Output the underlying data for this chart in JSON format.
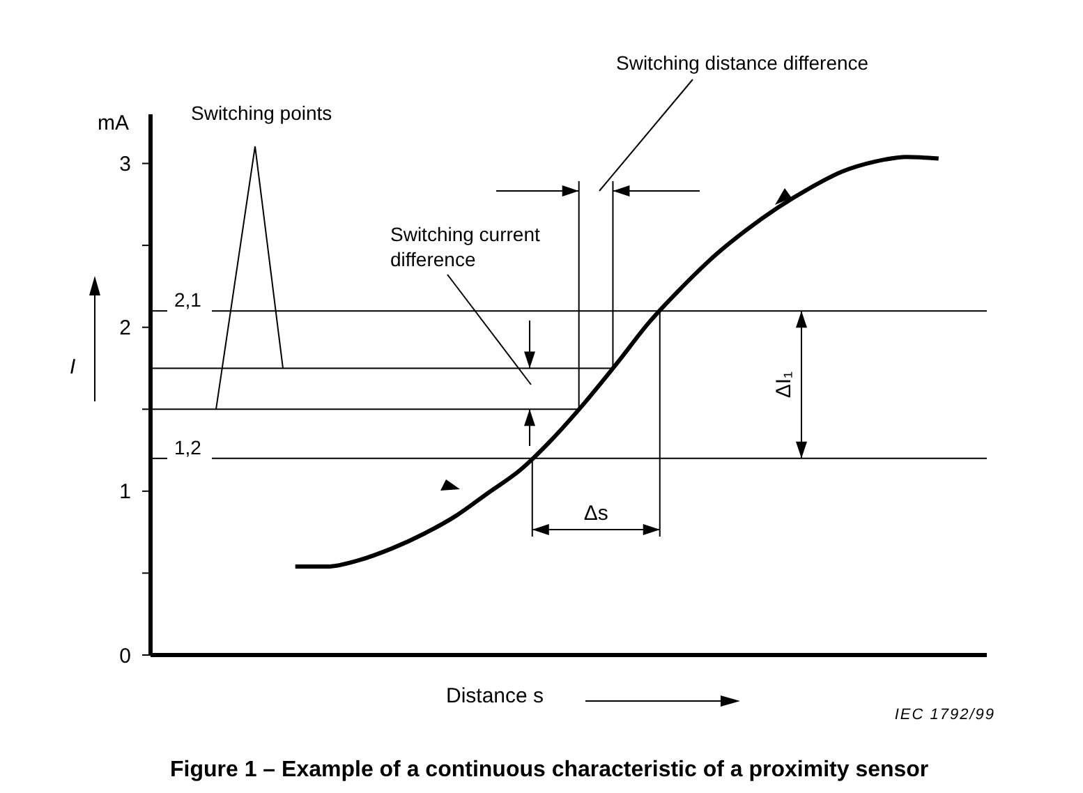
{
  "chart_data": {
    "type": "line",
    "title": "Figure 1 – Example of a continuous characteristic of a proximity sensor",
    "xlabel": "Distance s",
    "ylabel": "I",
    "categories": [
      null,
      null,
      null,
      null,
      null,
      null,
      null,
      null,
      null,
      null,
      null,
      null,
      null,
      null,
      null,
      null,
      null,
      null,
      null,
      null,
      null,
      null,
      null,
      null,
      null,
      null
    ],
    "series": [
      {
        "color": "#000000",
        "values": [
          null,
          null,
          null,
          null,
          0.54,
          0.54,
          0.58,
          0.65,
          0.74,
          0.85,
          0.99,
          1.13,
          1.32,
          1.54,
          1.78,
          2.03,
          2.24,
          2.43,
          2.59,
          2.73,
          2.85,
          2.95,
          3.01,
          3.04,
          3.03,
          null
        ]
      }
    ],
    "ylim": [
      0,
      3.3
    ],
    "yticks": [
      0,
      {
        "value": 0.5,
        "label": null
      },
      1,
      {
        "value": 1.5,
        "label": null
      },
      2,
      {
        "value": 2.5,
        "label": null
      },
      3
    ],
    "ref_lines": [
      {
        "axis": "y",
        "value": 2.1,
        "label": "2,1"
      },
      {
        "axis": "y",
        "value": 1.75
      },
      {
        "axis": "y",
        "value": 1.5
      },
      {
        "axis": "y",
        "value": 1.2,
        "label": "1,2"
      }
    ],
    "annotations": [
      "mA",
      "Switching points",
      "Switching current difference",
      "Switching distance difference",
      "Δs",
      "ΔI₁",
      "IEC 1792/99"
    ],
    "grid": false,
    "marker": "none",
    "line_style": "solid"
  }
}
